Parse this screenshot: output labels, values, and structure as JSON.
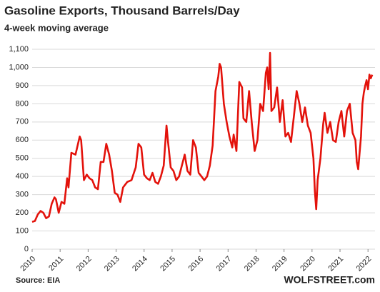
{
  "chart_data": {
    "type": "line",
    "title": "Gasoline Exports, Thousand Barrels/Day",
    "subtitle": "4-week moving average",
    "source": "Source: EIA",
    "credit": "WOLFSTREET.com",
    "color": "#e3120b",
    "grid": true,
    "xlim": [
      2010,
      2022.25
    ],
    "xticks": [
      2010,
      2011,
      2012,
      2013,
      2014,
      2015,
      2016,
      2017,
      2018,
      2019,
      2020,
      2021,
      2022
    ],
    "ylim": [
      0,
      1100
    ],
    "yticks": [
      0,
      100,
      200,
      300,
      400,
      500,
      600,
      700,
      800,
      900,
      {
        "value": 1000,
        "label": "1,000"
      },
      {
        "value": 1100,
        "label": "1,100"
      }
    ],
    "x": [
      2010.0,
      2010.1,
      2010.2,
      2010.3,
      2010.4,
      2010.5,
      2010.6,
      2010.7,
      2010.8,
      2010.85,
      2010.95,
      2011.05,
      2011.15,
      2011.25,
      2011.3,
      2011.4,
      2011.55,
      2011.7,
      2011.75,
      2011.85,
      2011.95,
      2012.05,
      2012.15,
      2012.25,
      2012.35,
      2012.45,
      2012.55,
      2012.65,
      2012.75,
      2012.85,
      2012.95,
      2013.05,
      2013.15,
      2013.25,
      2013.4,
      2013.55,
      2013.7,
      2013.8,
      2013.9,
      2014.0,
      2014.1,
      2014.2,
      2014.3,
      2014.4,
      2014.5,
      2014.6,
      2014.7,
      2014.8,
      2014.85,
      2014.95,
      2015.05,
      2015.15,
      2015.25,
      2015.35,
      2015.45,
      2015.55,
      2015.65,
      2015.75,
      2015.85,
      2015.95,
      2016.05,
      2016.15,
      2016.25,
      2016.35,
      2016.45,
      2016.55,
      2016.65,
      2016.7,
      2016.75,
      2016.85,
      2016.95,
      2017.05,
      2017.15,
      2017.2,
      2017.3,
      2017.4,
      2017.5,
      2017.55,
      2017.65,
      2017.75,
      2017.85,
      2017.95,
      2018.05,
      2018.15,
      2018.25,
      2018.35,
      2018.4,
      2018.45,
      2018.5,
      2018.55,
      2018.65,
      2018.75,
      2018.85,
      2018.95,
      2019.05,
      2019.15,
      2019.25,
      2019.35,
      2019.45,
      2019.55,
      2019.65,
      2019.75,
      2019.85,
      2019.95,
      2020.05,
      2020.1,
      2020.15,
      2020.2,
      2020.3,
      2020.4,
      2020.45,
      2020.55,
      2020.65,
      2020.75,
      2020.85,
      2020.95,
      2021.05,
      2021.15,
      2021.25,
      2021.35,
      2021.45,
      2021.55,
      2021.6,
      2021.65,
      2021.75,
      2021.8,
      2021.85,
      2021.9,
      2021.95,
      2022.0,
      2022.05,
      2022.1,
      2022.15
    ],
    "values": [
      150,
      155,
      190,
      210,
      200,
      170,
      180,
      250,
      285,
      275,
      200,
      260,
      250,
      390,
      340,
      530,
      520,
      620,
      600,
      380,
      410,
      390,
      380,
      340,
      330,
      480,
      480,
      580,
      520,
      430,
      310,
      300,
      260,
      340,
      370,
      380,
      450,
      580,
      560,
      410,
      390,
      380,
      420,
      370,
      360,
      400,
      460,
      680,
      600,
      450,
      430,
      380,
      400,
      460,
      520,
      430,
      410,
      600,
      560,
      420,
      400,
      380,
      400,
      460,
      570,
      870,
      950,
      1020,
      1000,
      800,
      700,
      620,
      560,
      630,
      540,
      920,
      890,
      720,
      700,
      870,
      690,
      540,
      600,
      800,
      760,
      970,
      1000,
      880,
      1080,
      760,
      780,
      890,
      700,
      820,
      620,
      640,
      590,
      730,
      870,
      800,
      700,
      780,
      680,
      640,
      500,
      320,
      220,
      380,
      500,
      690,
      750,
      640,
      700,
      600,
      590,
      700,
      760,
      620,
      760,
      800,
      640,
      600,
      480,
      440,
      620,
      800,
      860,
      900,
      930,
      880,
      960,
      940,
      960
    ]
  }
}
